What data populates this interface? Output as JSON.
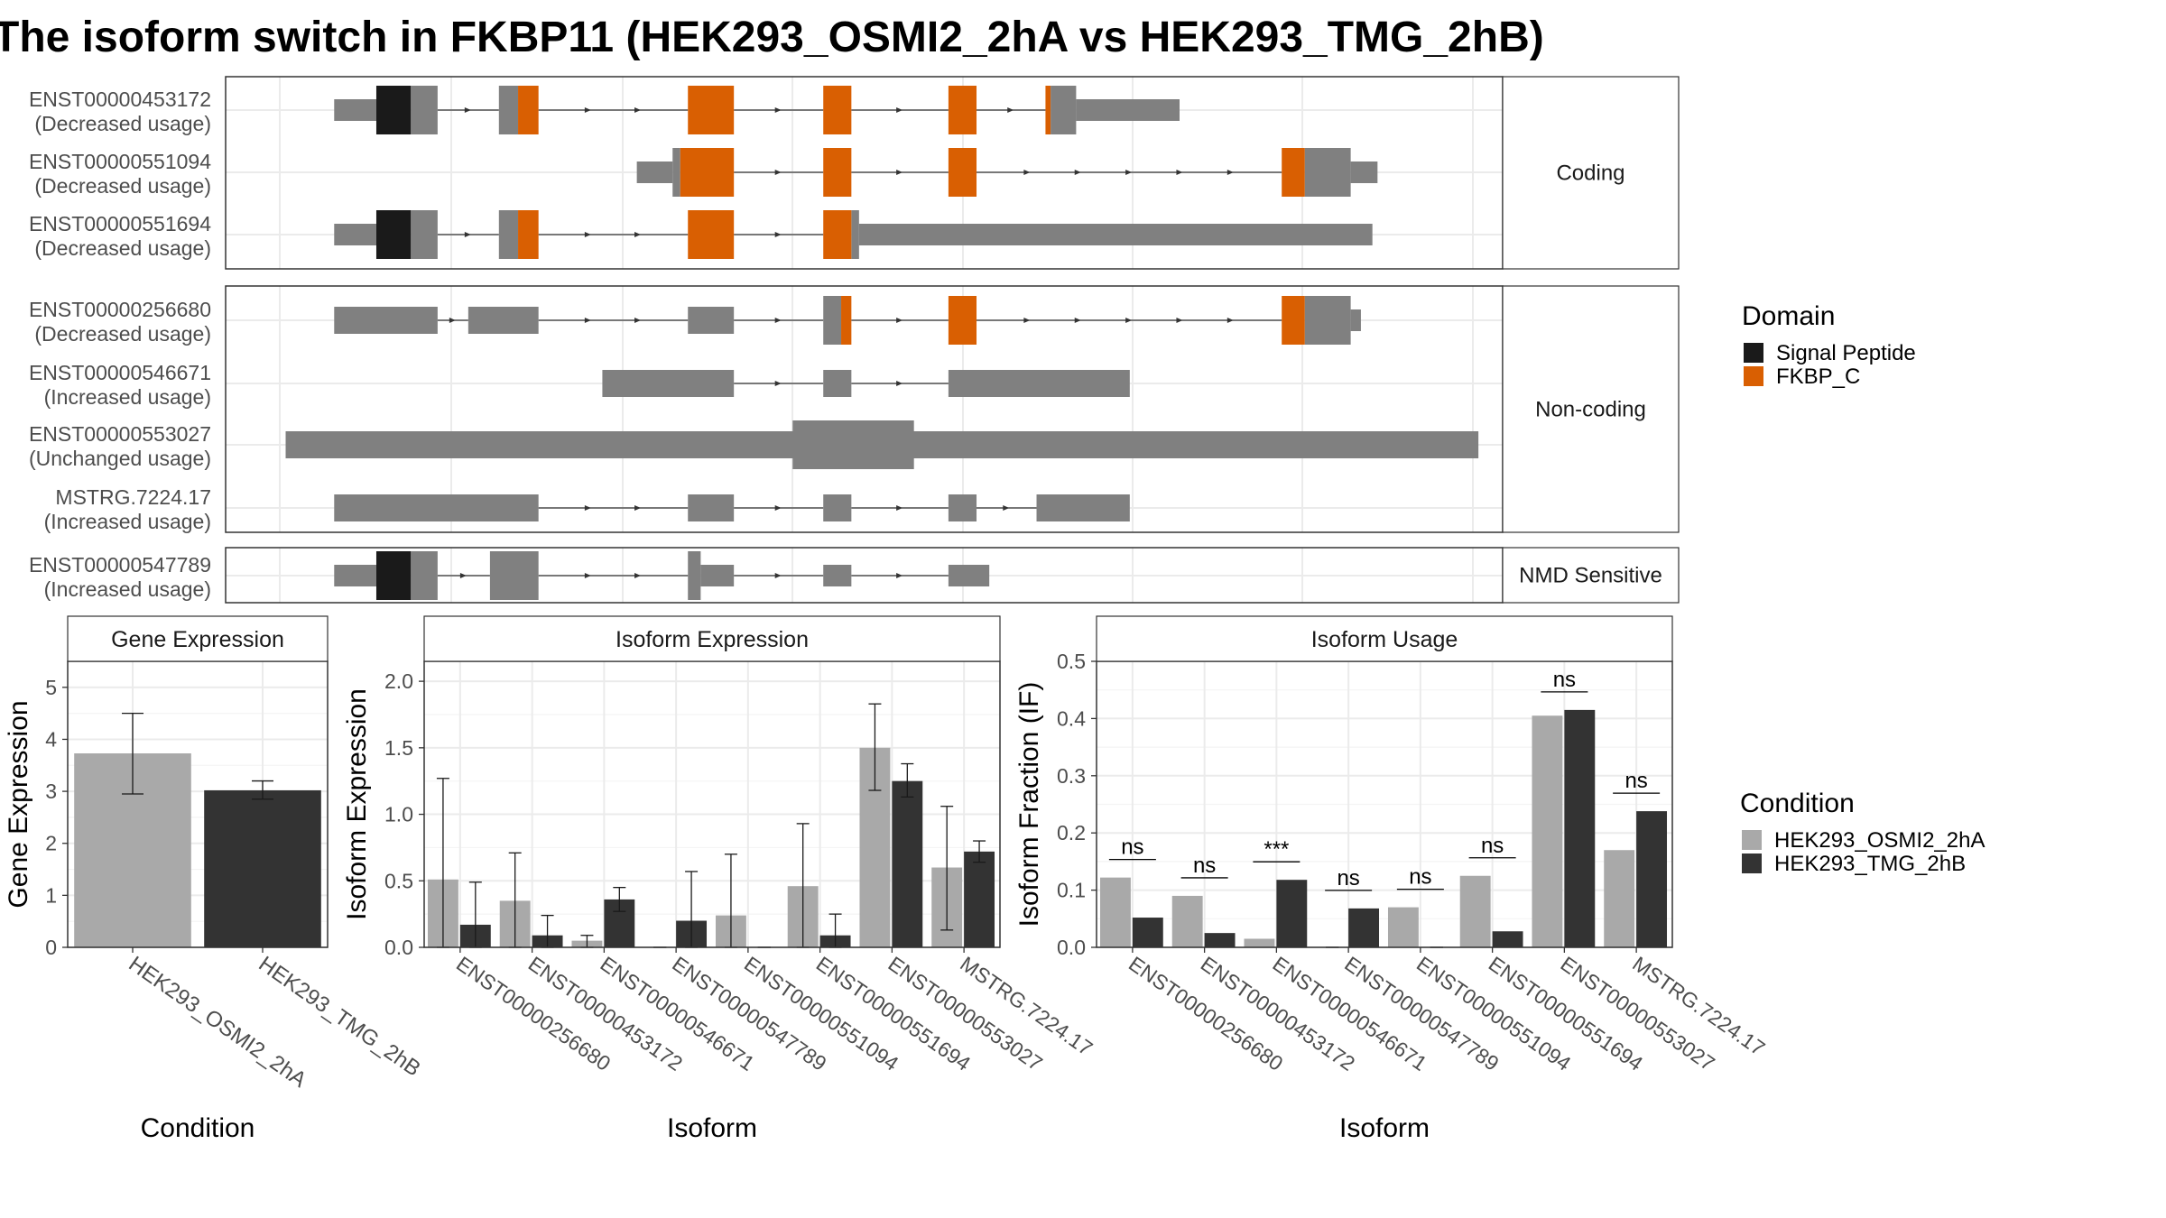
{
  "title": "The isoform switch in FKBP11 (HEK293_OSMI2_2hA vs HEK293_TMG_2hB)",
  "colors": {
    "signal_peptide": "#1a1a1a",
    "fkbp_c": "#d95f02",
    "exon": "#808080",
    "cond_a": "#a9a9a9",
    "cond_b": "#333333",
    "grid": "#ebebeb",
    "strip_bg": "#ffffff"
  },
  "structure": {
    "panels": [
      {
        "label": "Coding",
        "transcripts": [
          {
            "id": "ENST00000453172",
            "usage": "(Decreased usage)",
            "segments": [
              {
                "s": 0.085,
                "e": 0.118,
                "t": "utr"
              },
              {
                "s": 0.118,
                "e": 0.145,
                "t": "sp"
              },
              {
                "s": 0.145,
                "e": 0.166,
                "t": "cds"
              },
              {
                "s": 0.214,
                "e": 0.229,
                "t": "cds"
              },
              {
                "s": 0.229,
                "e": 0.245,
                "t": "fk"
              },
              {
                "s": 0.362,
                "e": 0.398,
                "t": "fk"
              },
              {
                "s": 0.468,
                "e": 0.49,
                "t": "fk"
              },
              {
                "s": 0.566,
                "e": 0.588,
                "t": "fk"
              },
              {
                "s": 0.642,
                "e": 0.646,
                "t": "fk"
              },
              {
                "s": 0.646,
                "e": 0.666,
                "t": "cds"
              },
              {
                "s": 0.666,
                "e": 0.747,
                "t": "utr"
              }
            ]
          },
          {
            "id": "ENST00000551094",
            "usage": "(Decreased usage)",
            "segments": [
              {
                "s": 0.322,
                "e": 0.35,
                "t": "utr"
              },
              {
                "s": 0.35,
                "e": 0.356,
                "t": "cds"
              },
              {
                "s": 0.356,
                "e": 0.398,
                "t": "fk"
              },
              {
                "s": 0.468,
                "e": 0.49,
                "t": "fk"
              },
              {
                "s": 0.566,
                "e": 0.588,
                "t": "fk"
              },
              {
                "s": 0.827,
                "e": 0.845,
                "t": "fk"
              },
              {
                "s": 0.845,
                "e": 0.881,
                "t": "cds"
              },
              {
                "s": 0.881,
                "e": 0.902,
                "t": "utr"
              }
            ]
          },
          {
            "id": "ENST00000551694",
            "usage": "(Decreased usage)",
            "segments": [
              {
                "s": 0.085,
                "e": 0.118,
                "t": "utr"
              },
              {
                "s": 0.118,
                "e": 0.145,
                "t": "sp"
              },
              {
                "s": 0.145,
                "e": 0.166,
                "t": "cds"
              },
              {
                "s": 0.214,
                "e": 0.229,
                "t": "cds"
              },
              {
                "s": 0.229,
                "e": 0.245,
                "t": "fk"
              },
              {
                "s": 0.362,
                "e": 0.398,
                "t": "fk"
              },
              {
                "s": 0.468,
                "e": 0.49,
                "t": "fk"
              },
              {
                "s": 0.49,
                "e": 0.496,
                "t": "cds"
              },
              {
                "s": 0.496,
                "e": 0.898,
                "t": "utr"
              }
            ]
          }
        ]
      },
      {
        "label": "Non-coding",
        "transcripts": [
          {
            "id": "ENST00000256680",
            "usage": "(Decreased usage)",
            "segments": [
              {
                "s": 0.085,
                "e": 0.166,
                "t": "nc"
              },
              {
                "s": 0.19,
                "e": 0.245,
                "t": "nc"
              },
              {
                "s": 0.362,
                "e": 0.398,
                "t": "nc"
              },
              {
                "s": 0.468,
                "e": 0.482,
                "t": "cds"
              },
              {
                "s": 0.482,
                "e": 0.49,
                "t": "fk"
              },
              {
                "s": 0.566,
                "e": 0.588,
                "t": "fk"
              },
              {
                "s": 0.827,
                "e": 0.845,
                "t": "fk"
              },
              {
                "s": 0.845,
                "e": 0.881,
                "t": "cds"
              },
              {
                "s": 0.881,
                "e": 0.889,
                "t": "utr"
              }
            ]
          },
          {
            "id": "ENST00000546671",
            "usage": "(Increased usage)",
            "segments": [
              {
                "s": 0.295,
                "e": 0.398,
                "t": "nc"
              },
              {
                "s": 0.468,
                "e": 0.49,
                "t": "nc"
              },
              {
                "s": 0.566,
                "e": 0.708,
                "t": "nc"
              }
            ]
          },
          {
            "id": "ENST00000553027",
            "usage": "(Unchanged usage)",
            "segments": [
              {
                "s": 0.047,
                "e": 0.981,
                "t": "nc"
              },
              {
                "s": 0.444,
                "e": 0.539,
                "t": "cds"
              }
            ]
          },
          {
            "id": "MSTRG.7224.17",
            "usage": "(Increased usage)",
            "segments": [
              {
                "s": 0.085,
                "e": 0.245,
                "t": "nc"
              },
              {
                "s": 0.362,
                "e": 0.398,
                "t": "nc"
              },
              {
                "s": 0.468,
                "e": 0.49,
                "t": "nc"
              },
              {
                "s": 0.566,
                "e": 0.588,
                "t": "nc"
              },
              {
                "s": 0.635,
                "e": 0.708,
                "t": "nc"
              }
            ]
          }
        ]
      },
      {
        "label": "NMD Sensitive",
        "transcripts": [
          {
            "id": "ENST00000547789",
            "usage": "(Increased usage)",
            "segments": [
              {
                "s": 0.085,
                "e": 0.118,
                "t": "utr"
              },
              {
                "s": 0.118,
                "e": 0.145,
                "t": "sp"
              },
              {
                "s": 0.145,
                "e": 0.166,
                "t": "cds"
              },
              {
                "s": 0.207,
                "e": 0.245,
                "t": "cds"
              },
              {
                "s": 0.362,
                "e": 0.372,
                "t": "cds"
              },
              {
                "s": 0.372,
                "e": 0.398,
                "t": "utr"
              },
              {
                "s": 0.468,
                "e": 0.49,
                "t": "utr"
              },
              {
                "s": 0.566,
                "e": 0.598,
                "t": "utr"
              }
            ]
          }
        ]
      }
    ]
  },
  "legend_domain": {
    "title": "Domain",
    "items": [
      "Signal Peptide",
      "FKBP_C"
    ]
  },
  "legend_condition": {
    "title": "Condition",
    "items": [
      "HEK293_OSMI2_2hA",
      "HEK293_TMG_2hB"
    ]
  },
  "chart_data": [
    {
      "type": "bar",
      "title": "Gene Expression",
      "xlabel": "Condition",
      "ylabel": "Gene Expression",
      "ylim": [
        0,
        5.5
      ],
      "yticks": [
        0,
        1,
        2,
        3,
        4,
        5
      ],
      "categories": [
        "HEK293_OSMI2_2hA",
        "HEK293_TMG_2hB"
      ],
      "values": [
        3.73,
        3.02
      ],
      "errors": [
        [
          2.95,
          4.5
        ],
        [
          2.85,
          3.2
        ]
      ],
      "grid": true
    },
    {
      "type": "bar",
      "title": "Isoform Expression",
      "xlabel": "Isoform",
      "ylabel": "Isoform Expression",
      "ylim": [
        0,
        2.15
      ],
      "yticks": [
        0.0,
        0.5,
        1.0,
        1.5,
        2.0
      ],
      "ytick_labels": [
        "0.0",
        "0.5",
        "1.0",
        "1.5",
        "2.0"
      ],
      "categories": [
        "ENST00000256680",
        "ENST00000453172",
        "ENST00000546671",
        "ENST00000547789",
        "ENST00000551094",
        "ENST00000551694",
        "ENST00000553027",
        "MSTRG.7224.17"
      ],
      "series": [
        {
          "name": "HEK293_OSMI2_2hA",
          "values": [
            0.51,
            0.35,
            0.05,
            0.0,
            0.24,
            0.46,
            1.5,
            0.6
          ],
          "errors": [
            [
              0.0,
              1.27
            ],
            [
              0.0,
              0.71
            ],
            [
              0.0,
              0.09
            ],
            [
              0.0,
              0.0
            ],
            [
              0.0,
              0.7
            ],
            [
              0.0,
              0.93
            ],
            [
              1.18,
              1.83
            ],
            [
              0.13,
              1.06
            ]
          ]
        },
        {
          "name": "HEK293_TMG_2hB",
          "values": [
            0.17,
            0.09,
            0.36,
            0.2,
            0.0,
            0.09,
            1.25,
            0.72
          ],
          "errors": [
            [
              0.0,
              0.49
            ],
            [
              0.0,
              0.24
            ],
            [
              0.27,
              0.45
            ],
            [
              0.0,
              0.57
            ],
            [
              0.0,
              0.0
            ],
            [
              0.0,
              0.25
            ],
            [
              1.13,
              1.38
            ],
            [
              0.64,
              0.8
            ]
          ]
        }
      ],
      "grid": true
    },
    {
      "type": "bar",
      "title": "Isoform Usage",
      "xlabel": "Isoform",
      "ylabel": "Isoform Fraction (IF)",
      "ylim": [
        0,
        0.5
      ],
      "yticks": [
        0.0,
        0.1,
        0.2,
        0.3,
        0.4,
        0.5
      ],
      "ytick_labels": [
        "0.0",
        "0.1",
        "0.2",
        "0.3",
        "0.4",
        "0.5"
      ],
      "categories": [
        "ENST00000256680",
        "ENST00000453172",
        "ENST00000546671",
        "ENST00000547789",
        "ENST00000551094",
        "ENST00000551694",
        "ENST00000553027",
        "MSTRG.7224.17"
      ],
      "series": [
        {
          "name": "HEK293_OSMI2_2hA",
          "values": [
            0.122,
            0.09,
            0.015,
            0.0,
            0.07,
            0.125,
            0.405,
            0.17
          ]
        },
        {
          "name": "HEK293_TMG_2hB",
          "values": [
            0.052,
            0.025,
            0.118,
            0.068,
            0.0,
            0.028,
            0.415,
            0.238
          ]
        }
      ],
      "significance": [
        "ns",
        "ns",
        "***",
        "ns",
        "ns",
        "ns",
        "ns",
        "ns"
      ],
      "grid": true
    }
  ]
}
